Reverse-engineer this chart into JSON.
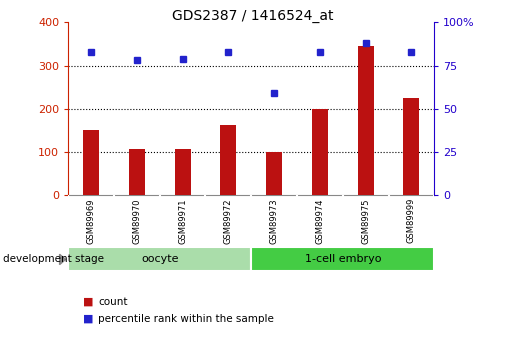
{
  "title": "GDS2387 / 1416524_at",
  "samples": [
    "GSM89969",
    "GSM89970",
    "GSM89971",
    "GSM89972",
    "GSM89973",
    "GSM89974",
    "GSM89975",
    "GSM89999"
  ],
  "counts": [
    150,
    107,
    107,
    163,
    100,
    200,
    345,
    225
  ],
  "percentiles": [
    83,
    78,
    79,
    83,
    59,
    83,
    88,
    83
  ],
  "groups": [
    {
      "label": "oocyte",
      "start": 0,
      "end": 3,
      "color": "#aaddaa"
    },
    {
      "label": "1-cell embryo",
      "start": 4,
      "end": 7,
      "color": "#44cc44"
    }
  ],
  "bar_color": "#bb1111",
  "dot_color": "#2222cc",
  "left_axis_color": "#cc2200",
  "right_axis_color": "#2200cc",
  "ylim_left": [
    0,
    400
  ],
  "ylim_right": [
    0,
    100
  ],
  "yticks_left": [
    0,
    100,
    200,
    300,
    400
  ],
  "yticks_right": [
    0,
    25,
    50,
    75,
    100
  ],
  "ytick_labels_right": [
    "0",
    "25",
    "50",
    "75",
    "100%"
  ],
  "grid_lines": [
    100,
    200,
    300
  ],
  "background_color": "#ffffff",
  "tick_area_color": "#cccccc",
  "development_stage_label": "development stage",
  "legend_count_label": "count",
  "legend_percentile_label": "percentile rank within the sample"
}
